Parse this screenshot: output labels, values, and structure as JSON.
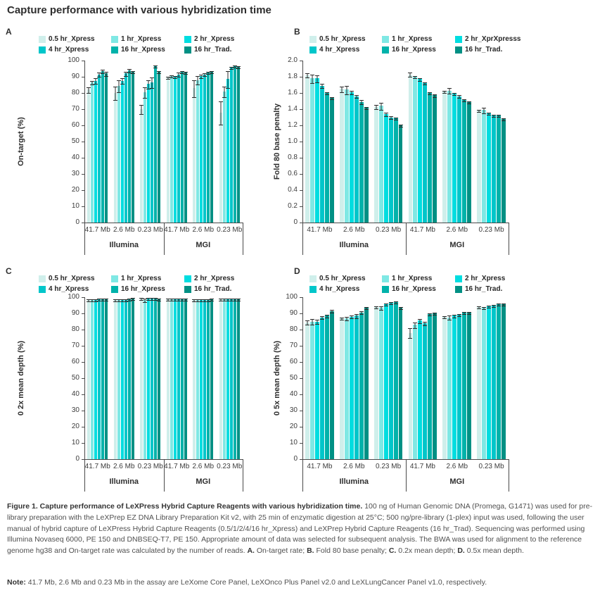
{
  "page_title": "Capture performance with various hybridization time",
  "colors": {
    "series": [
      "#cfefeb",
      "#7fe8e4",
      "#00dde0",
      "#00c6ca",
      "#00b2aa",
      "#009084"
    ],
    "axis": "#4a4a4a",
    "text": "#3c3c3c"
  },
  "chart_data": [
    {
      "panel": "A",
      "type": "bar",
      "title": "",
      "xlabel": "",
      "ylabel": "On-target (%)",
      "ymax": 100,
      "ylim": [
        0,
        100
      ],
      "yticks": [
        "0",
        "10",
        "20",
        "30",
        "40",
        "50",
        "60",
        "70",
        "80",
        "90",
        "100"
      ],
      "legend": [
        "0.5 hr_Xpress",
        "1 hr_Xpress",
        "2 hr_Xpress",
        "4 hr_Xpress",
        "16 hr_Xpress",
        "16 hr_Trad."
      ],
      "group_labels": [
        "41.7 Mb",
        "2.6 Mb",
        "0.23 Mb",
        "41.7 Mb",
        "2.6 Mb",
        "0.23 Mb"
      ],
      "platform_labels": [
        "Illumina",
        "MGI"
      ],
      "groups": [
        {
          "values": [
            82,
            86.5,
            87.5,
            91.5,
            93.5,
            92
          ],
          "errors": [
            1.5,
            1,
            1.5,
            1,
            1,
            1
          ]
        },
        {
          "values": [
            80,
            84.5,
            87.5,
            92,
            94,
            93
          ],
          "errors": [
            4,
            3.5,
            1.5,
            1,
            1,
            0.5
          ]
        },
        {
          "values": [
            70,
            80.5,
            85.5,
            86.5,
            96.5,
            93
          ],
          "errors": [
            2.5,
            3,
            2.5,
            3,
            0.5,
            0.5
          ]
        },
        {
          "values": [
            89.5,
            90.5,
            90,
            91.5,
            93,
            92.5
          ],
          "errors": [
            0.5,
            0.5,
            0.5,
            1,
            0.5,
            0.5
          ]
        },
        {
          "values": [
            83,
            88,
            90.5,
            91.5,
            92.5,
            93
          ],
          "errors": [
            5,
            2.5,
            1,
            0.5,
            0.5,
            0.5
          ]
        },
        {
          "values": [
            68,
            81,
            88.5,
            95.5,
            96.5,
            96
          ],
          "errors": [
            7,
            3,
            5,
            0.5,
            0.5,
            0.5
          ]
        }
      ]
    },
    {
      "panel": "B",
      "type": "bar",
      "title": "",
      "xlabel": "",
      "ylabel": "Fold 80 base penalty",
      "ymax": 2.0,
      "ylim": [
        0,
        2.0
      ],
      "yticks": [
        "0",
        "0.2",
        "0.4",
        "0.6",
        "0.8",
        "1.0",
        "1.2",
        "1.4",
        "1.6",
        "1.8",
        "2.0"
      ],
      "legend": [
        "0.5 hr_Xpress",
        "1 hr_Xpress",
        "2 hr_XprXpresss",
        "4 hr_Xpress",
        "16 hr_Xpress",
        "16 hr_Trad."
      ],
      "group_labels": [
        "41.7 Mb",
        "2.6 Mb",
        "0.23 Mb",
        "41.7 Mb",
        "2.6 Mb",
        "0.23 Mb"
      ],
      "platform_labels": [
        "Illumina",
        "MGI"
      ],
      "groups": [
        {
          "values": [
            1.82,
            1.78,
            1.78,
            1.69,
            1.6,
            1.54
          ],
          "errors": [
            0.02,
            0.05,
            0.04,
            0.02,
            0.01,
            0.01
          ]
        },
        {
          "values": [
            1.65,
            1.64,
            1.61,
            1.56,
            1.49,
            1.42
          ],
          "errors": [
            0.03,
            0.05,
            0.02,
            0.01,
            0.02,
            0.01
          ]
        },
        {
          "values": [
            1.43,
            1.44,
            1.34,
            1.3,
            1.29,
            1.2
          ],
          "errors": [
            0.02,
            0.04,
            0.02,
            0.01,
            0.01,
            0.01
          ]
        },
        {
          "values": [
            1.83,
            1.8,
            1.77,
            1.72,
            1.6,
            1.57
          ],
          "errors": [
            0.02,
            0.01,
            0.01,
            0.01,
            0.01,
            0.01
          ]
        },
        {
          "values": [
            1.62,
            1.63,
            1.59,
            1.56,
            1.51,
            1.49
          ],
          "errors": [
            0.01,
            0.03,
            0.01,
            0.01,
            0.01,
            0.01
          ]
        },
        {
          "values": [
            1.38,
            1.39,
            1.35,
            1.32,
            1.32,
            1.28
          ],
          "errors": [
            0.01,
            0.03,
            0.01,
            0.005,
            0.005,
            0.01
          ]
        }
      ]
    },
    {
      "panel": "C",
      "type": "bar",
      "title": "",
      "xlabel": "",
      "ylabel": "0 2x mean depth (%)",
      "ymax": 100,
      "ylim": [
        0,
        100
      ],
      "yticks": [
        "0",
        "10",
        "20",
        "30",
        "40",
        "50",
        "60",
        "70",
        "80",
        "90",
        "100"
      ],
      "legend": [
        "0.5 hr_Xpress",
        "1 hr_Xpress",
        "2 hr_Xpress",
        "4 hr_Xpress",
        "16 hr_Xpress",
        "16 hr_Trad."
      ],
      "group_labels": [
        "41.7 Mb",
        "2.6 Mb",
        "0.23 Mb",
        "41.7 Mb",
        "2.6 Mb",
        "0.23 Mb"
      ],
      "platform_labels": [
        "Illumina",
        "MGI"
      ],
      "groups": [
        {
          "values": [
            98.4,
            98.4,
            98.2,
            98.5,
            98.8,
            98.8
          ],
          "errors": [
            0.3,
            0.3,
            0.3,
            0.3,
            0.3,
            0.3
          ]
        },
        {
          "values": [
            98.4,
            98.4,
            98.3,
            98.4,
            98.5,
            99.1
          ],
          "errors": [
            0.3,
            0.3,
            0.3,
            0.3,
            0.3,
            0.3
          ]
        },
        {
          "values": [
            99.2,
            98.4,
            99.2,
            99.2,
            99.2,
            98.9
          ],
          "errors": [
            0.3,
            0.8,
            0.2,
            0.2,
            0.2,
            0.2
          ]
        },
        {
          "values": [
            98.5,
            98.6,
            98.9,
            98.6,
            98.6,
            98.7
          ],
          "errors": [
            0.3,
            0.3,
            0.3,
            0.3,
            0.3,
            0.3
          ]
        },
        {
          "values": [
            98.3,
            98.4,
            98.3,
            98.3,
            98.4,
            98.5
          ],
          "errors": [
            0.3,
            0.3,
            0.3,
            0.3,
            0.3,
            0.3
          ]
        },
        {
          "values": [
            98.9,
            98.7,
            98.6,
            98.6,
            98.7,
            98.7
          ],
          "errors": [
            0.2,
            0.2,
            0.2,
            0.2,
            0.2,
            0.2
          ]
        }
      ]
    },
    {
      "panel": "D",
      "type": "bar",
      "title": "",
      "xlabel": "",
      "ylabel": "0 5x mean depth (%)",
      "ymax": 100,
      "ylim": [
        0,
        100
      ],
      "yticks": [
        "0",
        "10",
        "20",
        "30",
        "40",
        "50",
        "60",
        "70",
        "80",
        "90",
        "100"
      ],
      "legend": [
        "0.5 hr_Xpress",
        "1 hr_Xpress",
        "2 hr_Xpress",
        "4 hr_Xpress",
        "16 hr_Xpress",
        "16 hr_Trad."
      ],
      "group_labels": [
        "41.7 Mb",
        "2.6 Mb",
        "0.23 Mb",
        "41.7 Mb",
        "2.6 Mb",
        "0.23 Mb"
      ],
      "platform_labels": [
        "Illumina",
        "MGI"
      ],
      "groups": [
        {
          "values": [
            84.5,
            85,
            85,
            87.5,
            88.5,
            91.5
          ],
          "errors": [
            1,
            1.5,
            1,
            0.7,
            0.5,
            0.5
          ]
        },
        {
          "values": [
            87,
            87,
            88,
            88.5,
            90.5,
            93.5
          ],
          "errors": [
            0.5,
            0.7,
            0.7,
            1,
            0.7,
            0.3
          ]
        },
        {
          "values": [
            94,
            93.5,
            95.5,
            96.5,
            97,
            93.5
          ],
          "errors": [
            0.5,
            0.7,
            0.5,
            0.3,
            0.3,
            0.3
          ]
        },
        {
          "values": [
            78,
            83,
            85.5,
            84,
            89.5,
            90
          ],
          "errors": [
            3,
            1.5,
            1,
            1,
            0.5,
            0.5
          ]
        },
        {
          "values": [
            88,
            87.5,
            88.5,
            89,
            90.5,
            90.5
          ],
          "errors": [
            0.3,
            1,
            0.7,
            0.5,
            0.3,
            0.3
          ]
        },
        {
          "values": [
            94,
            93.5,
            94.5,
            95,
            95.5,
            95.5
          ],
          "errors": [
            0.5,
            0.5,
            0.3,
            0.3,
            0.3,
            0.3
          ]
        }
      ]
    }
  ],
  "caption": {
    "parts": [
      {
        "text": "Figure 1. Capture performance of LeXPress Hybrid Capture Reagents with various hybridization time.",
        "bold": true
      },
      {
        "text": " 100 ng of Human Genomic DNA (Promega, G1471) was used for pre-library preparation with the LeXPrep EZ DNA Library Preparation Kit v2, with 25 min of enzymatic digestion at 25°C; 500 ng/pre-library (1-plex) input was used, following the user manual of hybrid capture of LeXPress Hybrid Capture Reagents (0.5/1/2/4/16 hr_Xpress) and LeXPrep Hybrid Capture Reagents (16 hr_Trad). Sequencing was performed using Illumina Novaseq 6000, PE 150 and DNBSEQ-T7, PE 150. Appropriate amount of data was selected for subsequent analysis. The BWA was used for alignment to the reference genome hg38 and On-target rate was calculated by the number of reads. ",
        "bold": false
      },
      {
        "text": "A.",
        "bold": true
      },
      {
        "text": " On-target rate; ",
        "bold": false
      },
      {
        "text": "B.",
        "bold": true
      },
      {
        "text": " Fold 80 base penalty; ",
        "bold": false
      },
      {
        "text": "C.",
        "bold": true
      },
      {
        "text": " 0.2x mean depth; ",
        "bold": false
      },
      {
        "text": "D.",
        "bold": true
      },
      {
        "text": " 0.5x mean depth.",
        "bold": false
      }
    ]
  },
  "note": {
    "parts": [
      {
        "text": "Note:",
        "bold": true
      },
      {
        "text": " 41.7 Mb, 2.6 Mb and 0.23 Mb in the assay are LeXome Core Panel, LeXOnco Plus Panel v2.0 and LeXLungCancer Panel v1.0, respectively.",
        "bold": false
      }
    ]
  }
}
